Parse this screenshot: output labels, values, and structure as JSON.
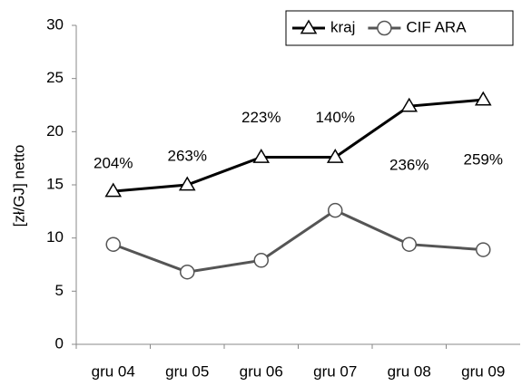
{
  "chart_data": {
    "type": "line",
    "y_label": "[zł/GJ] netto",
    "categories": [
      "gru 04",
      "gru 05",
      "gru 06",
      "gru 07",
      "gru 08",
      "gru 09"
    ],
    "series": [
      {
        "name": "kraj",
        "color": "#000000",
        "marker": "triangle",
        "values": [
          14.4,
          15.0,
          17.6,
          17.6,
          22.4,
          23.0
        ]
      },
      {
        "name": "CIF ARA",
        "color": "#555555",
        "marker": "circle",
        "values": [
          9.4,
          6.8,
          7.9,
          12.6,
          9.4,
          8.9
        ]
      }
    ],
    "annotations": [
      "204%",
      "263%",
      "223%",
      "140%",
      "236%",
      "259%"
    ],
    "ylim": [
      0,
      30
    ],
    "yticks": [
      0,
      5,
      10,
      15,
      20,
      25,
      30
    ],
    "legend": "top-right"
  }
}
